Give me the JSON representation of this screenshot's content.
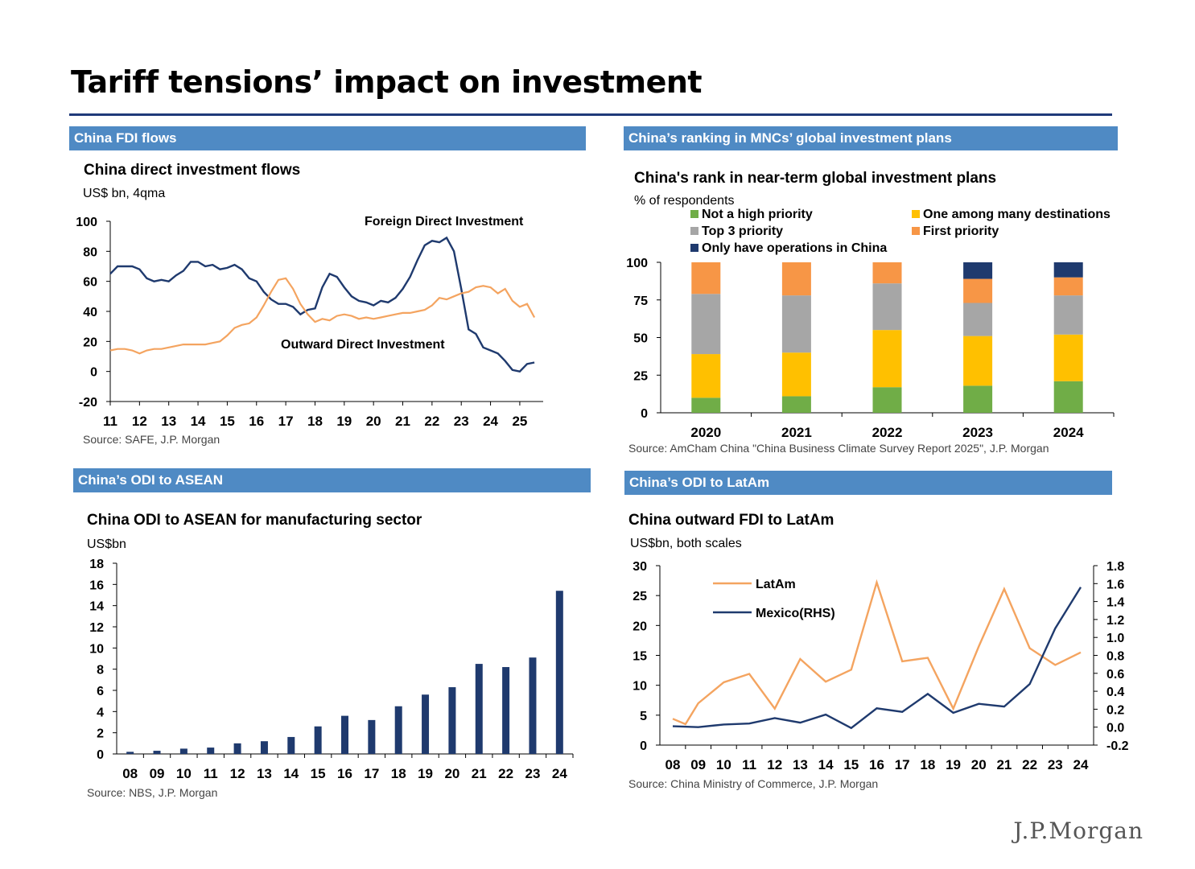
{
  "page": {
    "title": "Tariff tensions’ impact on investment",
    "logo": "J.P.Morgan"
  },
  "colors": {
    "navy": "#1f3a6e",
    "orange": "#f4a460",
    "header_bg": "#4f8ac4",
    "green": "#70ad47",
    "gray": "#a6a6a6",
    "yellow": "#ffc000",
    "bar_orange": "#f79646",
    "dark_blue": "#1f3a6e"
  },
  "panels": {
    "fdi": {
      "header": "China FDI flows"
    },
    "rank": {
      "header": "China’s ranking in MNCs’ global investment plans"
    },
    "asean": {
      "header": "China’s ODI to ASEAN"
    },
    "latam": {
      "header": "China’s ODI to LatAm"
    }
  },
  "chart_data": [
    {
      "id": "fdi",
      "type": "line",
      "title": "China direct investment flows",
      "subtitle": "US$ bn, 4qma",
      "source": "Source: SAFE, J.P. Morgan",
      "xlabels": [
        "11",
        "12",
        "13",
        "14",
        "15",
        "16",
        "17",
        "18",
        "19",
        "20",
        "21",
        "22",
        "23",
        "24",
        "25"
      ],
      "xlim": [
        2011,
        2025.8
      ],
      "ylim": [
        -20,
        100
      ],
      "yticks": [
        -20,
        0,
        20,
        40,
        60,
        80,
        100
      ],
      "annotations": [
        "Foreign Direct Investment",
        "Outward Direct Investment"
      ],
      "series": [
        {
          "name": "Foreign Direct Investment",
          "x": [
            2011,
            2011.25,
            2011.5,
            2011.75,
            2012,
            2012.25,
            2012.5,
            2012.75,
            2013,
            2013.25,
            2013.5,
            2013.75,
            2014,
            2014.25,
            2014.5,
            2014.75,
            2015,
            2015.25,
            2015.5,
            2015.75,
            2016,
            2016.25,
            2016.5,
            2016.75,
            2017,
            2017.25,
            2017.5,
            2017.75,
            2018,
            2018.25,
            2018.5,
            2018.75,
            2019,
            2019.25,
            2019.5,
            2019.75,
            2020,
            2020.25,
            2020.5,
            2020.75,
            2021,
            2021.25,
            2021.5,
            2021.75,
            2022,
            2022.25,
            2022.5,
            2022.75,
            2023,
            2023.25,
            2023.5,
            2023.75,
            2024,
            2024.25,
            2024.5,
            2024.75,
            2025,
            2025.25,
            2025.5
          ],
          "values": [
            65,
            70,
            70,
            70,
            68,
            62,
            60,
            61,
            60,
            64,
            67,
            73,
            73,
            70,
            71,
            68,
            69,
            71,
            68,
            62,
            60,
            53,
            48,
            45,
            45,
            43,
            38,
            41,
            42,
            56,
            65,
            63,
            56,
            50,
            47,
            46,
            44,
            47,
            46,
            49,
            55,
            63,
            74,
            84,
            87,
            86,
            89,
            80,
            55,
            28,
            25,
            16,
            14,
            12,
            7,
            1,
            0,
            5,
            6
          ]
        },
        {
          "name": "Outward Direct Investment",
          "x": [
            2011,
            2011.25,
            2011.5,
            2011.75,
            2012,
            2012.25,
            2012.5,
            2012.75,
            2013,
            2013.25,
            2013.5,
            2013.75,
            2014,
            2014.25,
            2014.5,
            2014.75,
            2015,
            2015.25,
            2015.5,
            2015.75,
            2016,
            2016.25,
            2016.5,
            2016.75,
            2017,
            2017.25,
            2017.5,
            2017.75,
            2018,
            2018.25,
            2018.5,
            2018.75,
            2019,
            2019.25,
            2019.5,
            2019.75,
            2020,
            2020.25,
            2020.5,
            2020.75,
            2021,
            2021.25,
            2021.5,
            2021.75,
            2022,
            2022.25,
            2022.5,
            2022.75,
            2023,
            2023.25,
            2023.5,
            2023.75,
            2024,
            2024.25,
            2024.5,
            2024.75,
            2025,
            2025.25,
            2025.5
          ],
          "values": [
            14,
            15,
            15,
            14,
            12,
            14,
            15,
            15,
            16,
            17,
            18,
            18,
            18,
            18,
            19,
            20,
            24,
            29,
            31,
            32,
            36,
            44,
            53,
            61,
            62,
            55,
            45,
            38,
            33,
            35,
            34,
            37,
            38,
            37,
            35,
            36,
            35,
            36,
            37,
            38,
            39,
            39,
            40,
            41,
            44,
            49,
            48,
            50,
            52,
            53,
            56,
            57,
            56,
            52,
            55,
            47,
            43,
            45,
            36
          ]
        }
      ]
    },
    {
      "id": "rank",
      "type": "bar",
      "stacked": true,
      "title": "China's rank in near-term global investment plans",
      "subtitle": "% of respondents",
      "source": "Source: AmCham China \"China Business Climate Survey Report 2025\", J.P. Morgan",
      "categories": [
        "2020",
        "2021",
        "2022",
        "2023",
        "2024"
      ],
      "ylim": [
        0,
        100
      ],
      "yticks": [
        0,
        25,
        50,
        75,
        100
      ],
      "series": [
        {
          "name": "Not a high priority",
          "values": [
            10,
            11,
            17,
            18,
            21
          ]
        },
        {
          "name": "One among many destinations",
          "values": [
            29,
            29,
            38,
            33,
            31
          ]
        },
        {
          "name": "Top 3 priority",
          "values": [
            40,
            38,
            31,
            22,
            26
          ]
        },
        {
          "name": "First priority",
          "values": [
            21,
            22,
            14,
            16,
            12
          ]
        },
        {
          "name": "Only have operations in China",
          "values": [
            0,
            0,
            0,
            11,
            10
          ]
        }
      ]
    },
    {
      "id": "asean",
      "type": "bar",
      "title": "China ODI to ASEAN for manufacturing sector",
      "subtitle": "US$bn",
      "source": "Source: NBS, J.P. Morgan",
      "categories": [
        "08",
        "09",
        "10",
        "11",
        "12",
        "13",
        "14",
        "15",
        "16",
        "17",
        "18",
        "19",
        "20",
        "21",
        "22",
        "23",
        "24"
      ],
      "values": [
        0.2,
        0.3,
        0.5,
        0.6,
        1.0,
        1.2,
        1.6,
        2.6,
        3.6,
        3.2,
        4.5,
        5.6,
        6.3,
        8.5,
        8.2,
        9.1,
        15.4
      ],
      "ylim": [
        0,
        18
      ],
      "yticks": [
        0,
        2,
        4,
        6,
        8,
        10,
        12,
        14,
        16,
        18
      ]
    },
    {
      "id": "latam",
      "type": "line",
      "title": "China outward FDI to LatAm",
      "subtitle": "US$bn, both scales",
      "source": "Source: China Ministry of Commerce, J.P. Morgan",
      "xlabels": [
        "08",
        "09",
        "10",
        "11",
        "12",
        "13",
        "14",
        "15",
        "16",
        "17",
        "18",
        "19",
        "20",
        "21",
        "22",
        "23",
        "24"
      ],
      "ylim": [
        0,
        30
      ],
      "yticks": [
        0,
        5,
        10,
        15,
        20,
        25,
        30
      ],
      "y2lim": [
        -0.2,
        1.8
      ],
      "y2ticks": [
        "-0.2",
        "0.0",
        "0.2",
        "0.4",
        "0.6",
        "0.8",
        "1.0",
        "1.2",
        "1.4",
        "1.6",
        "1.8"
      ],
      "series": [
        {
          "name": "LatAm",
          "axis": "left",
          "x": [
            2008,
            2008.5,
            2009,
            2010,
            2011,
            2012,
            2013,
            2014,
            2015,
            2016,
            2017,
            2018,
            2019,
            2020,
            2021,
            2022,
            2023,
            2024
          ],
          "values": [
            4.4,
            3.5,
            7.0,
            10.5,
            11.9,
            6.1,
            14.4,
            10.6,
            12.6,
            27.2,
            14.0,
            14.6,
            6.1,
            16.5,
            26.1,
            16.2,
            13.4,
            15.5
          ]
        },
        {
          "name": "Mexico(RHS)",
          "axis": "right",
          "x": [
            2008,
            2009,
            2010,
            2011,
            2012,
            2013,
            2014,
            2015,
            2016,
            2017,
            2018,
            2019,
            2020,
            2021,
            2022,
            2023,
            2024
          ],
          "values": [
            0.01,
            0.0,
            0.03,
            0.04,
            0.1,
            0.05,
            0.14,
            -0.01,
            0.21,
            0.17,
            0.37,
            0.16,
            0.26,
            0.23,
            0.48,
            1.1,
            1.56
          ]
        }
      ]
    }
  ]
}
